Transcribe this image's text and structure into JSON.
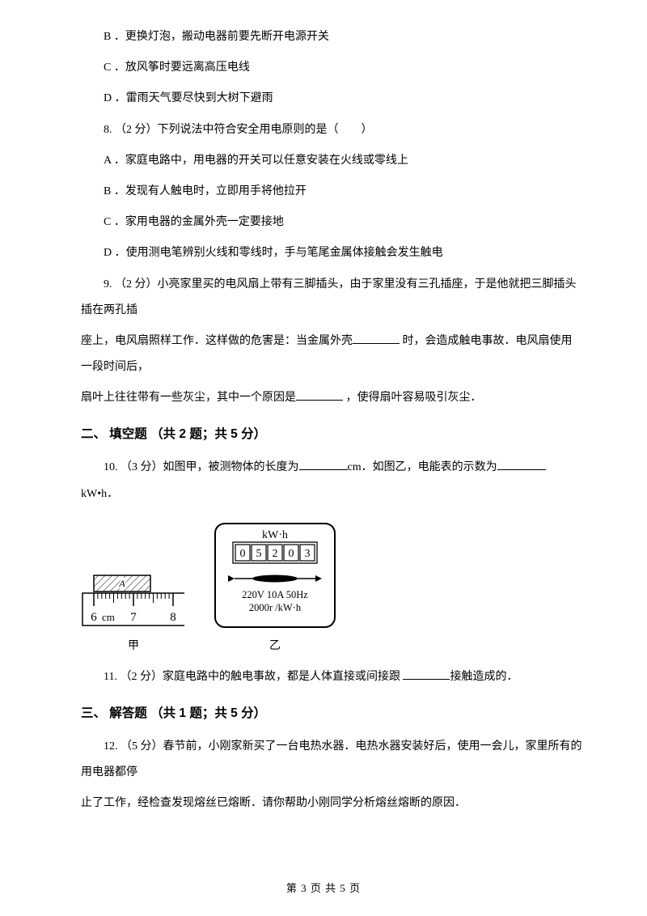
{
  "opts": {
    "b": "B ．更换灯泡，搬动电器前要先断开电源开关",
    "c": "C ．放风筝时要远离高压电线",
    "d": "D ．雷雨天气要尽快到大树下避雨"
  },
  "q8": {
    "stem": "8. （2 分）下列说法中符合安全用电原则的是（　　）",
    "a": "A ．家庭电路中，用电器的开关可以任意安装在火线或零线上",
    "b": "B ．发现有人触电时，立即用手将他拉开",
    "c": "C ．家用电器的金属外壳一定要接地",
    "d": "D ．使用测电笔辨别火线和零线时，手与笔尾金属体接触会发生触电"
  },
  "q9": {
    "l1": "9. （2 分）小亮家里买的电风扇上带有三脚插头，由于家里没有三孔插座，于是他就把三脚插头插在两孔插",
    "l2": "座上，电风扇照样工作．这样做的危害是：当金属外壳",
    "l2b": " 时，会造成触电事故．电风扇使用一段时间后，",
    "l3": "扇叶上往往带有一些灰尘，其中一个原因是",
    "l3b": " ，使得扇叶容易吸引灰尘．"
  },
  "sec2": "二、 填空题 （共 2 题；共 5 分）",
  "q10": {
    "a": "10. （3 分）如图甲，被测物体的长度为",
    "b": "cm．如图乙，电能表的示数为",
    "c": "kW•h．",
    "cap1": "甲",
    "cap2": "乙"
  },
  "q11": {
    "a": "11. （2 分）家庭电路中的触电事故，都是人体直接或间接跟 ",
    "b": "接触造成的．"
  },
  "sec3": "三、 解答题 （共 1 题；共 5 分）",
  "q12": {
    "l1": "12. （5 分）春节前，小刚家新买了一台电热水器．电热水器安装好后，使用一会儿，家里所有的用电器都停",
    "l2": "止了工作，经检查发现熔丝已熔断．请你帮助小刚同学分析熔丝熔断的原因．"
  },
  "footer": "第 3 页 共 5 页",
  "blanks": {
    "w_q9a": 58,
    "w_q9b": 58,
    "w_q10a": 60,
    "w_q10b": 60,
    "w_q11": 58
  },
  "ruler": {
    "width": 130,
    "height": 74,
    "stroke": "#000000",
    "fill": "#ffffff",
    "label_A": "A",
    "numbers": [
      "6",
      "7",
      "8"
    ],
    "unit": "cm"
  },
  "meter": {
    "width": 160,
    "height": 140,
    "stroke": "#000000",
    "header": "kW·h",
    "digits": [
      "0",
      "5",
      "2",
      "0",
      "3"
    ],
    "line1": "220V  10A  50Hz",
    "line2": "2000r /kW·h"
  }
}
